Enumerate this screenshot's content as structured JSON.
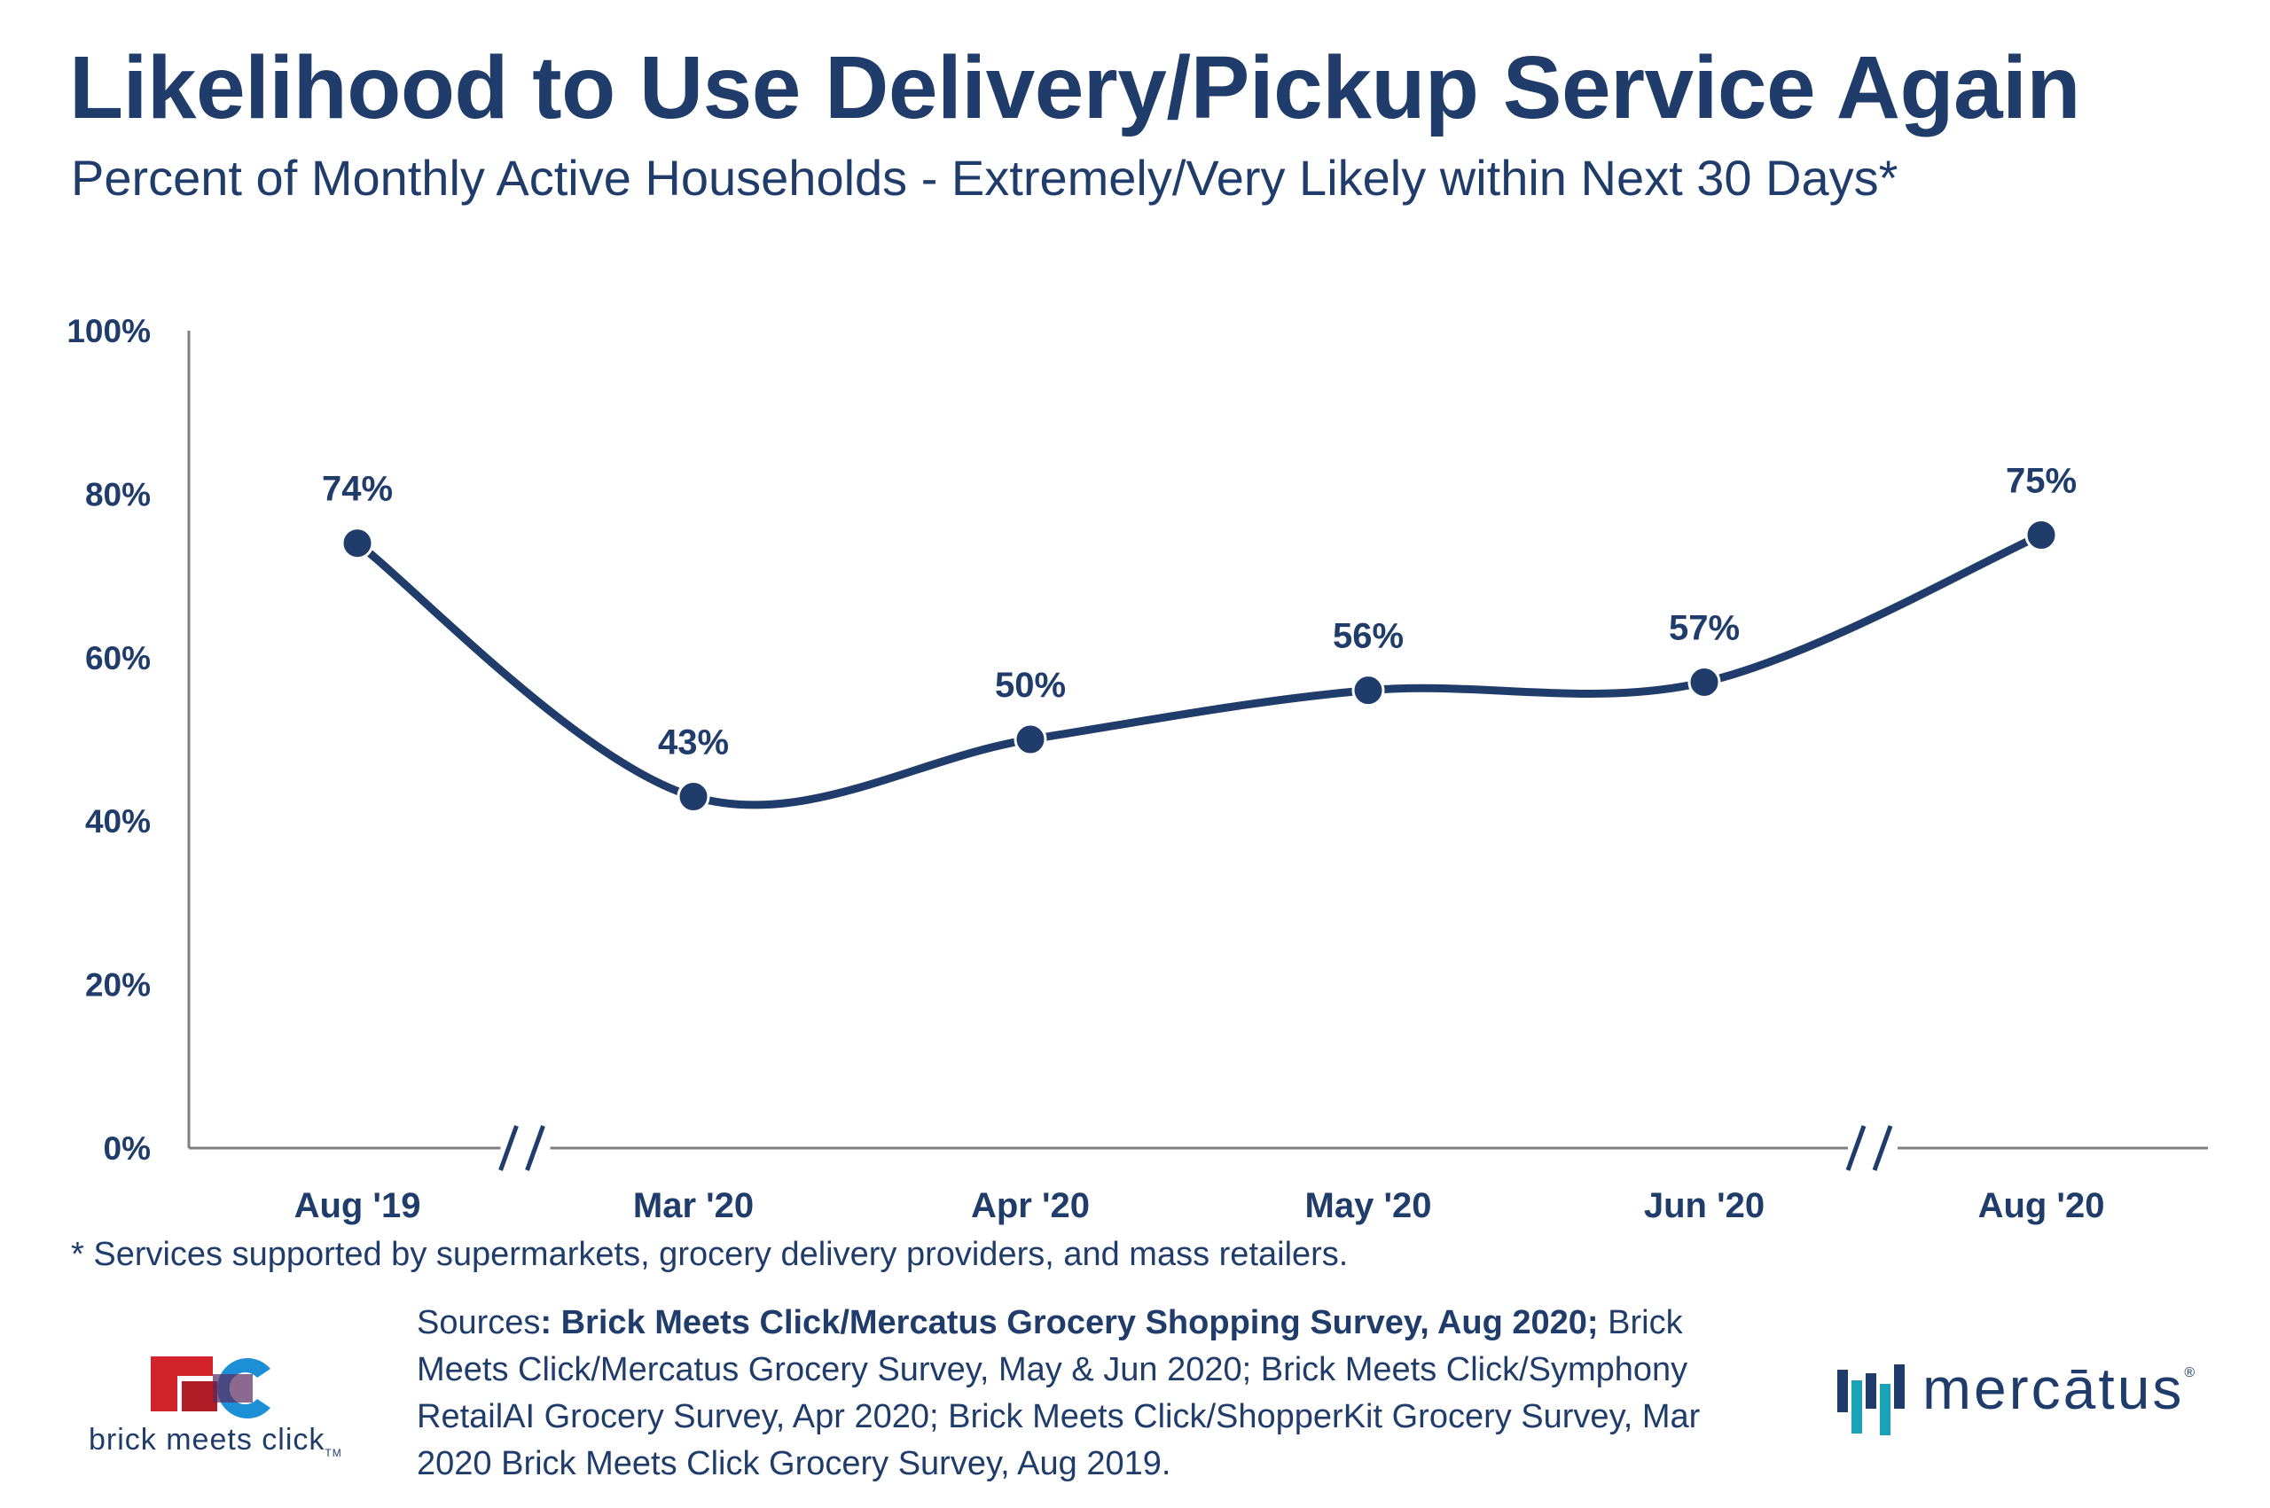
{
  "title": "Likelihood to Use Delivery/Pickup Service Again",
  "subtitle": "Percent of Monthly Active Households - Extremely/Very Likely within Next 30 Days*",
  "chart_data": {
    "type": "line",
    "categories": [
      "Aug '19",
      "Mar '20",
      "Apr '20",
      "May '20",
      "Jun '20",
      "Aug '20"
    ],
    "values": [
      74,
      43,
      50,
      56,
      57,
      75
    ],
    "data_labels": [
      "74%",
      "43%",
      "50%",
      "56%",
      "57%",
      "75%"
    ],
    "y_ticks": [
      0,
      20,
      40,
      60,
      80,
      100
    ],
    "y_tick_labels": [
      "0%",
      "20%",
      "40%",
      "60%",
      "80%",
      "100%"
    ],
    "ylim": [
      0,
      100
    ],
    "axis_breaks": [
      "between Aug '19 and Mar '20",
      "between Jun '20 and Aug '20"
    ],
    "grid": false,
    "legend": "none",
    "line_color": "#1f3c6b"
  },
  "footnote": "* Services supported by supermarkets, grocery delivery providers, and mass retailers.",
  "sources": {
    "prefix": "Sources",
    "bold": ": Brick Meets Click/Mercatus Grocery Shopping Survey, Aug 2020;",
    "rest": " Brick Meets Click/Mercatus Grocery Survey, May & Jun 2020; Brick Meets Click/Symphony RetailAI Grocery Survey, Apr 2020; Brick Meets Click/ShopperKit Grocery Survey, Mar 2020 Brick Meets Click Grocery Survey, Aug 2019."
  },
  "logos": {
    "left_text": "brick meets click",
    "left_tm": "TM",
    "right_text": "mercātus",
    "right_reg": "®"
  },
  "colors": {
    "primary": "#1f3c6b",
    "brick_red": "#d2232a",
    "click_blue": "#1c8fd6",
    "merc_teal": "#1aa3b8"
  }
}
